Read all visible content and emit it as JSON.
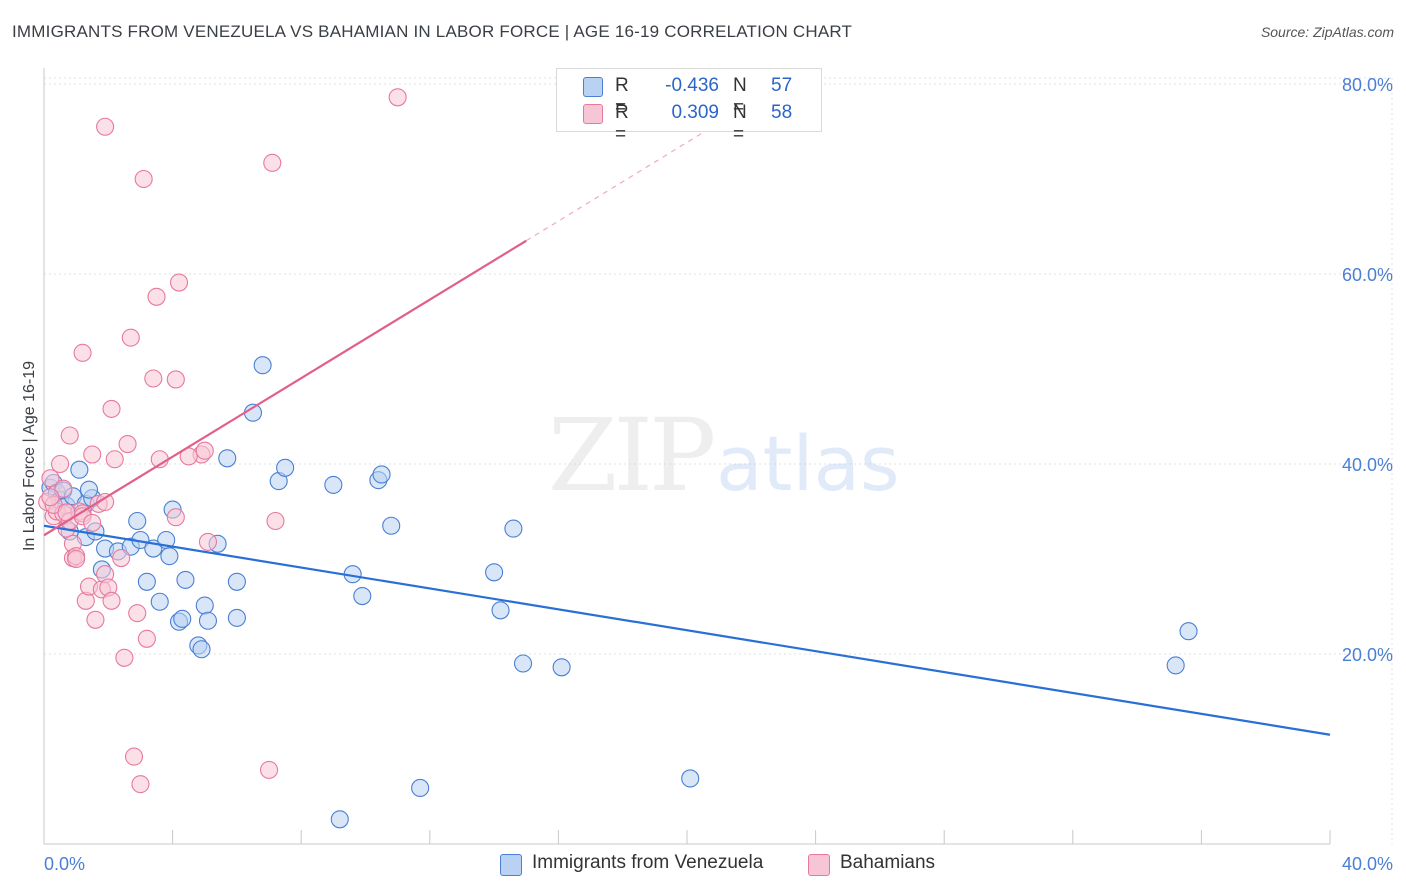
{
  "title": "IMMIGRANTS FROM VENEZUELA VS BAHAMIAN IN LABOR FORCE | AGE 16-19 CORRELATION CHART",
  "source": "Source: ZipAtlas.com",
  "watermark": {
    "zip": "ZIP",
    "atlas": "atlas"
  },
  "legend": {
    "r_label": "R =",
    "n_label": "N =",
    "rows": [
      {
        "r": "-0.436",
        "n": "57"
      },
      {
        "r": "0.309",
        "n": "58"
      }
    ]
  },
  "bottom_legend": [
    "Immigrants from Venezuela",
    "Bahamians"
  ],
  "colors": {
    "blue_fill": "#b9d1f3",
    "blue_stroke": "#4a7fd4",
    "blue_line": "#2a6fd6",
    "pink_fill": "#f7c6d6",
    "pink_stroke": "#e7799e",
    "pink_line": "#e0608a",
    "grid": "#e2e2e2",
    "tick_text": "#4a7fd4"
  },
  "chart_data": {
    "type": "scatter",
    "title": "IMMIGRANTS FROM VENEZUELA VS BAHAMIAN IN LABOR FORCE | AGE 16-19 CORRELATION CHART",
    "xlabel": "",
    "ylabel": "In Labor Force | Age 16-19",
    "xlim": [
      0,
      40
    ],
    "ylim": [
      0,
      80
    ],
    "x_ticks": [
      0,
      40
    ],
    "x_tick_labels": [
      "0.0%",
      "40.0%"
    ],
    "y_ticks": [
      20,
      40,
      60,
      80
    ],
    "y_tick_labels": [
      "20.0%",
      "40.0%",
      "60.0%",
      "80.0%"
    ],
    "legend_position": "top-center",
    "series": [
      {
        "name": "Immigrants from Venezuela",
        "r": -0.436,
        "n": 57,
        "trend": {
          "x0": 0,
          "y0": 33.5,
          "x1": 40,
          "y1": 11.5
        },
        "points": [
          [
            0.2,
            37.5
          ],
          [
            0.3,
            38.0
          ],
          [
            0.4,
            37.0
          ],
          [
            0.5,
            36.2
          ],
          [
            0.6,
            37.2
          ],
          [
            0.7,
            35.6
          ],
          [
            0.9,
            36.6
          ],
          [
            1.1,
            39.4
          ],
          [
            1.3,
            35.8
          ],
          [
            1.5,
            36.4
          ],
          [
            0.8,
            32.9
          ],
          [
            1.3,
            32.3
          ],
          [
            1.6,
            32.9
          ],
          [
            1.8,
            28.9
          ],
          [
            1.9,
            31.1
          ],
          [
            2.3,
            30.8
          ],
          [
            2.7,
            31.3
          ],
          [
            3.0,
            32.0
          ],
          [
            3.2,
            27.6
          ],
          [
            3.4,
            31.1
          ],
          [
            3.6,
            25.5
          ],
          [
            3.8,
            32.0
          ],
          [
            3.9,
            30.3
          ],
          [
            4.0,
            35.2
          ],
          [
            2.9,
            34.0
          ],
          [
            4.2,
            23.4
          ],
          [
            4.4,
            27.8
          ],
          [
            4.3,
            23.7
          ],
          [
            4.8,
            20.9
          ],
          [
            4.9,
            20.5
          ],
          [
            5.0,
            25.1
          ],
          [
            5.1,
            23.5
          ],
          [
            5.4,
            31.6
          ],
          [
            5.7,
            40.6
          ],
          [
            6.0,
            27.6
          ],
          [
            6.0,
            23.8
          ],
          [
            6.5,
            45.4
          ],
          [
            6.8,
            50.4
          ],
          [
            7.3,
            38.2
          ],
          [
            7.5,
            39.6
          ],
          [
            9.0,
            37.8
          ],
          [
            9.6,
            28.4
          ],
          [
            9.9,
            26.1
          ],
          [
            10.4,
            38.3
          ],
          [
            10.5,
            38.9
          ],
          [
            10.8,
            33.5
          ],
          [
            11.7,
            5.9
          ],
          [
            14.0,
            28.6
          ],
          [
            14.2,
            24.6
          ],
          [
            14.6,
            33.2
          ],
          [
            14.9,
            19.0
          ],
          [
            16.1,
            18.6
          ],
          [
            20.1,
            6.9
          ],
          [
            35.2,
            18.8
          ],
          [
            35.6,
            22.4
          ],
          [
            9.2,
            2.6
          ],
          [
            1.4,
            37.3
          ]
        ]
      },
      {
        "name": "Bahamians",
        "r": 0.309,
        "n": 58,
        "trend": {
          "x0": 0,
          "y0": 32.5,
          "x1": 15.0,
          "y1": 63.5,
          "dash_to_x": 22.0,
          "dash_to_y": 78.0
        },
        "points": [
          [
            0.1,
            36.0
          ],
          [
            0.2,
            38.5
          ],
          [
            0.3,
            34.5
          ],
          [
            0.4,
            35.0
          ],
          [
            0.5,
            40.0
          ],
          [
            0.6,
            34.8
          ],
          [
            0.7,
            33.2
          ],
          [
            0.8,
            34.0
          ],
          [
            0.8,
            43.0
          ],
          [
            0.9,
            31.6
          ],
          [
            0.9,
            30.1
          ],
          [
            1.0,
            30.3
          ],
          [
            1.1,
            35.0
          ],
          [
            1.2,
            34.8
          ],
          [
            1.2,
            34.5
          ],
          [
            1.3,
            25.6
          ],
          [
            1.4,
            27.1
          ],
          [
            1.5,
            41.0
          ],
          [
            1.6,
            23.6
          ],
          [
            1.7,
            35.8
          ],
          [
            1.8,
            26.8
          ],
          [
            1.9,
            28.4
          ],
          [
            1.9,
            36.0
          ],
          [
            2.0,
            27.0
          ],
          [
            2.1,
            25.6
          ],
          [
            2.1,
            45.8
          ],
          [
            2.2,
            40.5
          ],
          [
            2.4,
            30.1
          ],
          [
            2.6,
            42.1
          ],
          [
            2.5,
            19.6
          ],
          [
            2.9,
            24.3
          ],
          [
            2.8,
            9.2
          ],
          [
            3.0,
            6.3
          ],
          [
            3.1,
            70.0
          ],
          [
            3.2,
            21.6
          ],
          [
            3.4,
            49.0
          ],
          [
            3.5,
            57.6
          ],
          [
            3.6,
            40.5
          ],
          [
            4.1,
            48.9
          ],
          [
            4.2,
            59.1
          ],
          [
            4.1,
            34.4
          ],
          [
            4.9,
            41.0
          ],
          [
            5.0,
            41.4
          ],
          [
            5.1,
            31.8
          ],
          [
            7.0,
            7.8
          ],
          [
            7.2,
            34.0
          ],
          [
            7.1,
            71.7
          ],
          [
            11.0,
            78.6
          ],
          [
            1.9,
            75.5
          ],
          [
            2.7,
            53.3
          ],
          [
            1.2,
            51.7
          ],
          [
            0.6,
            37.4
          ],
          [
            0.3,
            35.7
          ],
          [
            0.7,
            34.9
          ],
          [
            1.5,
            33.8
          ],
          [
            0.2,
            36.5
          ],
          [
            4.5,
            40.8
          ],
          [
            1.0,
            30.0
          ]
        ]
      }
    ]
  }
}
